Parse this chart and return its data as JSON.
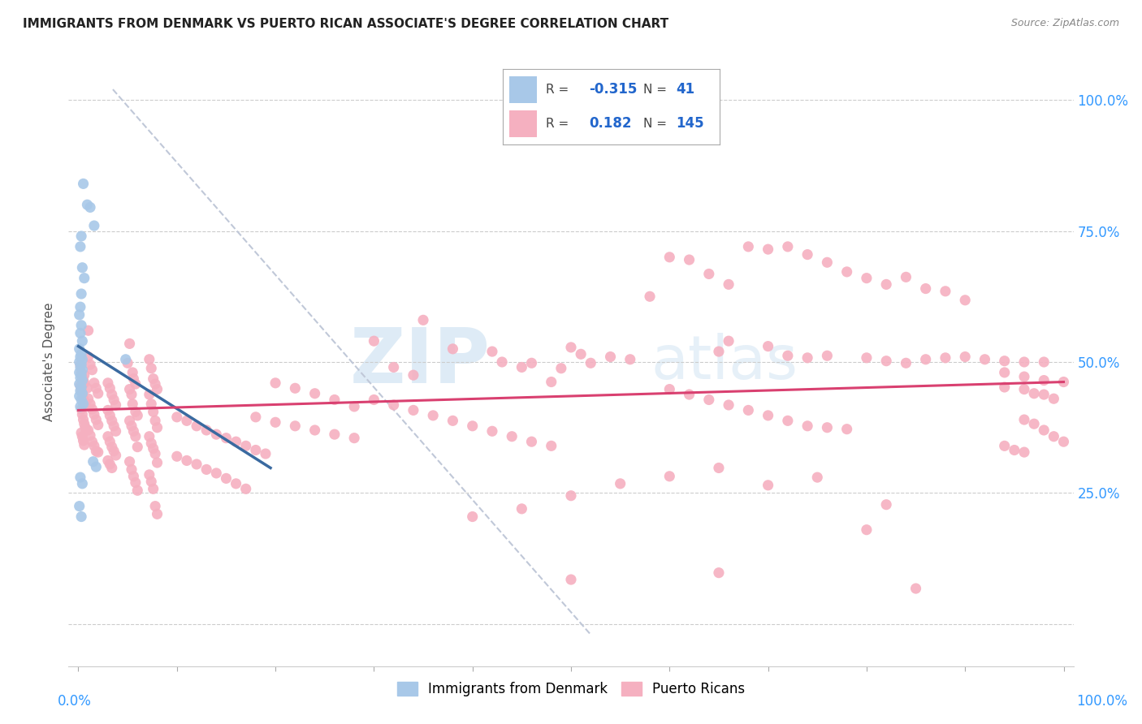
{
  "title": "IMMIGRANTS FROM DENMARK VS PUERTO RICAN ASSOCIATE'S DEGREE CORRELATION CHART",
  "source": "Source: ZipAtlas.com",
  "ylabel": "Associate's Degree",
  "ytick_labels": [
    "",
    "25.0%",
    "50.0%",
    "75.0%",
    "100.0%"
  ],
  "ytick_positions": [
    0.0,
    0.25,
    0.5,
    0.75,
    1.0
  ],
  "xlim": [
    -0.01,
    1.01
  ],
  "ylim": [
    -0.08,
    1.08
  ],
  "blue_color": "#a8c8e8",
  "pink_color": "#f5b0c0",
  "blue_line_color": "#3a6aa0",
  "pink_line_color": "#d94070",
  "dashed_line_color": "#c0c8d8",
  "watermark_zip": "ZIP",
  "watermark_atlas": "atlas",
  "blue_scatter": [
    [
      0.005,
      0.84
    ],
    [
      0.009,
      0.8
    ],
    [
      0.012,
      0.795
    ],
    [
      0.016,
      0.76
    ],
    [
      0.003,
      0.74
    ],
    [
      0.002,
      0.72
    ],
    [
      0.004,
      0.68
    ],
    [
      0.006,
      0.66
    ],
    [
      0.003,
      0.63
    ],
    [
      0.002,
      0.605
    ],
    [
      0.001,
      0.59
    ],
    [
      0.003,
      0.57
    ],
    [
      0.002,
      0.555
    ],
    [
      0.004,
      0.54
    ],
    [
      0.001,
      0.525
    ],
    [
      0.003,
      0.515
    ],
    [
      0.002,
      0.51
    ],
    [
      0.004,
      0.505
    ],
    [
      0.001,
      0.5
    ],
    [
      0.003,
      0.495
    ],
    [
      0.002,
      0.49
    ],
    [
      0.004,
      0.485
    ],
    [
      0.001,
      0.48
    ],
    [
      0.003,
      0.475
    ],
    [
      0.002,
      0.47
    ],
    [
      0.004,
      0.465
    ],
    [
      0.001,
      0.458
    ],
    [
      0.003,
      0.452
    ],
    [
      0.002,
      0.445
    ],
    [
      0.004,
      0.44
    ],
    [
      0.001,
      0.435
    ],
    [
      0.003,
      0.428
    ],
    [
      0.005,
      0.42
    ],
    [
      0.002,
      0.415
    ],
    [
      0.015,
      0.31
    ],
    [
      0.018,
      0.3
    ],
    [
      0.002,
      0.28
    ],
    [
      0.004,
      0.268
    ],
    [
      0.048,
      0.505
    ],
    [
      0.001,
      0.225
    ],
    [
      0.003,
      0.205
    ]
  ],
  "pink_scatter": [
    [
      0.002,
      0.495
    ],
    [
      0.003,
      0.48
    ],
    [
      0.004,
      0.47
    ],
    [
      0.005,
      0.465
    ],
    [
      0.002,
      0.455
    ],
    [
      0.003,
      0.448
    ],
    [
      0.004,
      0.44
    ],
    [
      0.005,
      0.43
    ],
    [
      0.006,
      0.46
    ],
    [
      0.007,
      0.42
    ],
    [
      0.003,
      0.41
    ],
    [
      0.004,
      0.4
    ],
    [
      0.005,
      0.39
    ],
    [
      0.006,
      0.382
    ],
    [
      0.007,
      0.375
    ],
    [
      0.008,
      0.37
    ],
    [
      0.003,
      0.365
    ],
    [
      0.004,
      0.358
    ],
    [
      0.005,
      0.35
    ],
    [
      0.006,
      0.342
    ],
    [
      0.01,
      0.51
    ],
    [
      0.012,
      0.495
    ],
    [
      0.014,
      0.485
    ],
    [
      0.016,
      0.46
    ],
    [
      0.018,
      0.45
    ],
    [
      0.02,
      0.44
    ],
    [
      0.01,
      0.43
    ],
    [
      0.012,
      0.42
    ],
    [
      0.014,
      0.41
    ],
    [
      0.016,
      0.4
    ],
    [
      0.018,
      0.39
    ],
    [
      0.02,
      0.38
    ],
    [
      0.01,
      0.37
    ],
    [
      0.012,
      0.36
    ],
    [
      0.014,
      0.348
    ],
    [
      0.016,
      0.34
    ],
    [
      0.018,
      0.33
    ],
    [
      0.02,
      0.328
    ],
    [
      0.03,
      0.46
    ],
    [
      0.032,
      0.45
    ],
    [
      0.034,
      0.438
    ],
    [
      0.036,
      0.428
    ],
    [
      0.038,
      0.418
    ],
    [
      0.03,
      0.408
    ],
    [
      0.032,
      0.398
    ],
    [
      0.034,
      0.388
    ],
    [
      0.036,
      0.378
    ],
    [
      0.038,
      0.368
    ],
    [
      0.03,
      0.358
    ],
    [
      0.032,
      0.348
    ],
    [
      0.034,
      0.338
    ],
    [
      0.036,
      0.33
    ],
    [
      0.038,
      0.322
    ],
    [
      0.03,
      0.312
    ],
    [
      0.032,
      0.305
    ],
    [
      0.034,
      0.298
    ],
    [
      0.052,
      0.535
    ],
    [
      0.05,
      0.498
    ],
    [
      0.055,
      0.48
    ],
    [
      0.056,
      0.468
    ],
    [
      0.058,
      0.458
    ],
    [
      0.052,
      0.448
    ],
    [
      0.054,
      0.438
    ],
    [
      0.055,
      0.42
    ],
    [
      0.058,
      0.405
    ],
    [
      0.06,
      0.398
    ],
    [
      0.052,
      0.388
    ],
    [
      0.054,
      0.378
    ],
    [
      0.056,
      0.368
    ],
    [
      0.058,
      0.358
    ],
    [
      0.06,
      0.338
    ],
    [
      0.052,
      0.31
    ],
    [
      0.054,
      0.295
    ],
    [
      0.056,
      0.282
    ],
    [
      0.058,
      0.27
    ],
    [
      0.06,
      0.255
    ],
    [
      0.072,
      0.505
    ],
    [
      0.074,
      0.488
    ],
    [
      0.076,
      0.468
    ],
    [
      0.078,
      0.458
    ],
    [
      0.08,
      0.448
    ],
    [
      0.072,
      0.438
    ],
    [
      0.074,
      0.42
    ],
    [
      0.076,
      0.405
    ],
    [
      0.078,
      0.388
    ],
    [
      0.08,
      0.375
    ],
    [
      0.072,
      0.358
    ],
    [
      0.074,
      0.345
    ],
    [
      0.076,
      0.335
    ],
    [
      0.078,
      0.325
    ],
    [
      0.08,
      0.308
    ],
    [
      0.072,
      0.285
    ],
    [
      0.074,
      0.272
    ],
    [
      0.076,
      0.258
    ],
    [
      0.078,
      0.225
    ],
    [
      0.08,
      0.21
    ],
    [
      0.01,
      0.56
    ],
    [
      0.006,
      0.475
    ],
    [
      0.009,
      0.45
    ],
    [
      0.3,
      0.54
    ],
    [
      0.32,
      0.49
    ],
    [
      0.34,
      0.475
    ],
    [
      0.38,
      0.525
    ],
    [
      0.35,
      0.58
    ],
    [
      0.42,
      0.52
    ],
    [
      0.43,
      0.5
    ],
    [
      0.45,
      0.49
    ],
    [
      0.46,
      0.498
    ],
    [
      0.48,
      0.462
    ],
    [
      0.49,
      0.488
    ],
    [
      0.5,
      0.528
    ],
    [
      0.51,
      0.515
    ],
    [
      0.52,
      0.498
    ],
    [
      0.54,
      0.51
    ],
    [
      0.56,
      0.505
    ],
    [
      0.58,
      0.625
    ],
    [
      0.6,
      0.7
    ],
    [
      0.62,
      0.695
    ],
    [
      0.64,
      0.668
    ],
    [
      0.66,
      0.648
    ],
    [
      0.68,
      0.72
    ],
    [
      0.7,
      0.715
    ],
    [
      0.72,
      0.72
    ],
    [
      0.74,
      0.705
    ],
    [
      0.76,
      0.69
    ],
    [
      0.78,
      0.672
    ],
    [
      0.8,
      0.66
    ],
    [
      0.82,
      0.648
    ],
    [
      0.84,
      0.662
    ],
    [
      0.86,
      0.64
    ],
    [
      0.88,
      0.635
    ],
    [
      0.9,
      0.618
    ],
    [
      0.65,
      0.52
    ],
    [
      0.66,
      0.54
    ],
    [
      0.7,
      0.53
    ],
    [
      0.72,
      0.512
    ],
    [
      0.74,
      0.508
    ],
    [
      0.76,
      0.512
    ],
    [
      0.8,
      0.508
    ],
    [
      0.82,
      0.502
    ],
    [
      0.84,
      0.498
    ],
    [
      0.86,
      0.505
    ],
    [
      0.88,
      0.508
    ],
    [
      0.9,
      0.51
    ],
    [
      0.92,
      0.505
    ],
    [
      0.94,
      0.502
    ],
    [
      0.96,
      0.5
    ],
    [
      0.98,
      0.5
    ],
    [
      0.94,
      0.48
    ],
    [
      0.96,
      0.472
    ],
    [
      0.98,
      0.465
    ],
    [
      1.0,
      0.462
    ],
    [
      0.94,
      0.452
    ],
    [
      0.96,
      0.448
    ],
    [
      0.97,
      0.44
    ],
    [
      0.98,
      0.438
    ],
    [
      0.99,
      0.43
    ],
    [
      0.96,
      0.39
    ],
    [
      0.97,
      0.382
    ],
    [
      0.98,
      0.37
    ],
    [
      0.99,
      0.358
    ],
    [
      1.0,
      0.348
    ],
    [
      0.94,
      0.34
    ],
    [
      0.95,
      0.332
    ],
    [
      0.96,
      0.328
    ],
    [
      0.6,
      0.448
    ],
    [
      0.62,
      0.438
    ],
    [
      0.64,
      0.428
    ],
    [
      0.66,
      0.418
    ],
    [
      0.68,
      0.408
    ],
    [
      0.7,
      0.398
    ],
    [
      0.72,
      0.388
    ],
    [
      0.74,
      0.378
    ],
    [
      0.76,
      0.375
    ],
    [
      0.78,
      0.372
    ],
    [
      0.3,
      0.428
    ],
    [
      0.32,
      0.418
    ],
    [
      0.34,
      0.408
    ],
    [
      0.36,
      0.398
    ],
    [
      0.38,
      0.388
    ],
    [
      0.4,
      0.378
    ],
    [
      0.42,
      0.368
    ],
    [
      0.44,
      0.358
    ],
    [
      0.46,
      0.348
    ],
    [
      0.48,
      0.34
    ],
    [
      0.2,
      0.46
    ],
    [
      0.22,
      0.45
    ],
    [
      0.24,
      0.44
    ],
    [
      0.26,
      0.428
    ],
    [
      0.28,
      0.415
    ],
    [
      0.18,
      0.395
    ],
    [
      0.2,
      0.385
    ],
    [
      0.22,
      0.378
    ],
    [
      0.24,
      0.37
    ],
    [
      0.26,
      0.362
    ],
    [
      0.28,
      0.355
    ],
    [
      0.1,
      0.395
    ],
    [
      0.11,
      0.388
    ],
    [
      0.12,
      0.378
    ],
    [
      0.13,
      0.37
    ],
    [
      0.14,
      0.362
    ],
    [
      0.15,
      0.355
    ],
    [
      0.16,
      0.348
    ],
    [
      0.17,
      0.34
    ],
    [
      0.18,
      0.332
    ],
    [
      0.19,
      0.325
    ],
    [
      0.1,
      0.32
    ],
    [
      0.11,
      0.312
    ],
    [
      0.12,
      0.305
    ],
    [
      0.13,
      0.295
    ],
    [
      0.14,
      0.288
    ],
    [
      0.15,
      0.278
    ],
    [
      0.16,
      0.268
    ],
    [
      0.17,
      0.258
    ],
    [
      0.4,
      0.205
    ],
    [
      0.45,
      0.22
    ],
    [
      0.5,
      0.245
    ],
    [
      0.55,
      0.268
    ],
    [
      0.6,
      0.282
    ],
    [
      0.65,
      0.298
    ],
    [
      0.7,
      0.265
    ],
    [
      0.75,
      0.28
    ],
    [
      0.8,
      0.18
    ],
    [
      0.82,
      0.228
    ],
    [
      0.5,
      0.085
    ],
    [
      0.65,
      0.098
    ],
    [
      0.85,
      0.068
    ]
  ],
  "blue_line": {
    "x0": 0.0,
    "y0": 0.53,
    "x1": 0.195,
    "y1": 0.298
  },
  "pink_line": {
    "x0": 0.0,
    "y0": 0.408,
    "x1": 1.0,
    "y1": 0.462
  },
  "dashed_line": {
    "x0": 0.035,
    "y0": 1.02,
    "x1": 0.52,
    "y1": -0.02
  }
}
